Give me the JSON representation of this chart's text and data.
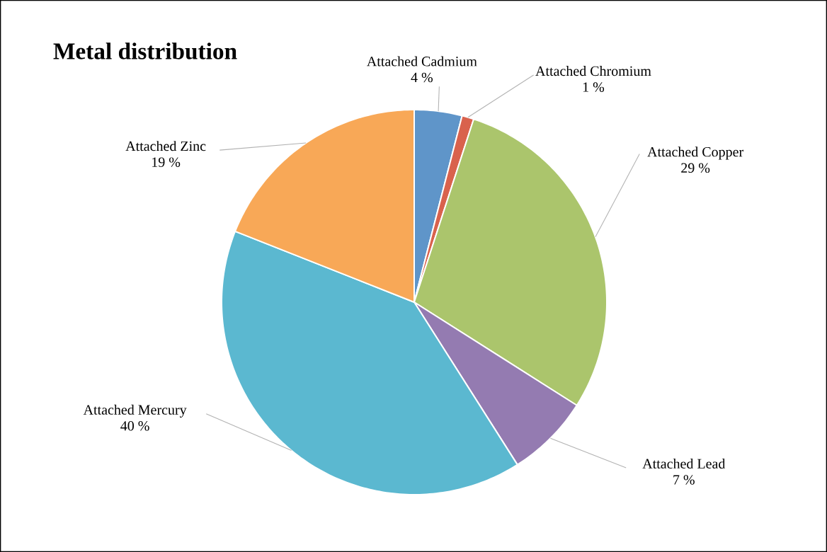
{
  "chart_data": {
    "type": "pie",
    "title": "Metal distribution",
    "categories": [
      "Attached Cadmium",
      "Attached Chromium",
      "Attached Copper",
      "Attached Lead",
      "Attached Mercury",
      "Attached Zinc"
    ],
    "values": [
      4,
      1,
      29,
      7,
      40,
      19
    ],
    "colors": [
      "#5f95c9",
      "#d9624d",
      "#abc56c",
      "#947bb1",
      "#5bb8d0",
      "#f8a857"
    ],
    "value_labels": [
      "4 %",
      "1 %",
      "29 %",
      "7 %",
      "40 %",
      "19 %"
    ]
  }
}
